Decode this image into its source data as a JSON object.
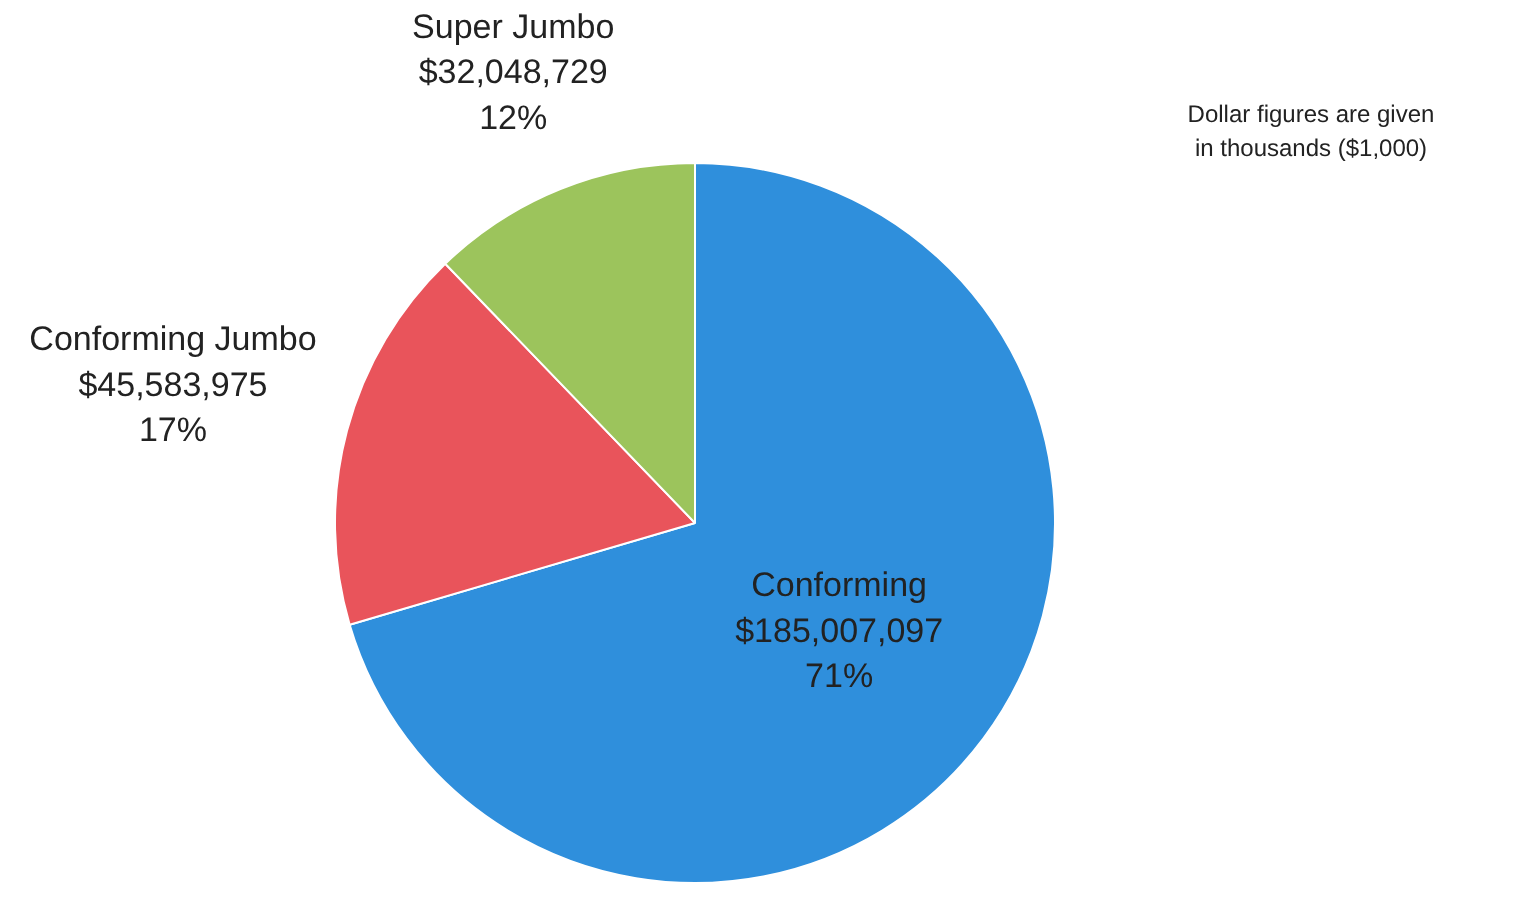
{
  "chart_data": {
    "type": "pie",
    "categories": [
      "Conforming",
      "Conforming Jumbo",
      "Super Jumbo"
    ],
    "values": [
      185007097,
      45583975,
      32048729
    ],
    "colors": [
      "#2f8fdc",
      "#e9545b",
      "#9cc45c"
    ],
    "value_labels": [
      "$185,007,097\n71%",
      "$45,583,975\n17%",
      "$32,048,729\n12%"
    ],
    "annotations": [
      "Dollar figures are given\nin thousands ($1,000)"
    ]
  }
}
